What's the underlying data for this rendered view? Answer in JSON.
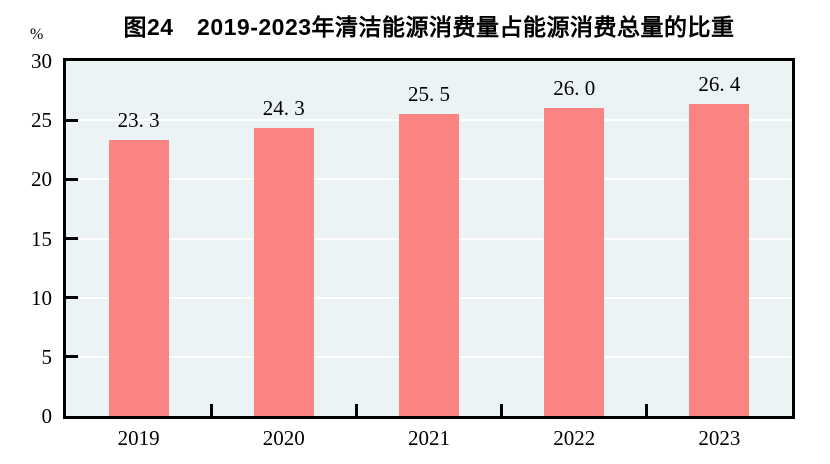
{
  "chart_data": {
    "type": "bar",
    "title": "图24　2019-2023年清洁能源消费量占能源消费总量的比重",
    "unit": "%",
    "categories": [
      "2019",
      "2020",
      "2021",
      "2022",
      "2023"
    ],
    "values": [
      23.3,
      24.3,
      25.5,
      26.0,
      26.4
    ],
    "value_labels": [
      "23. 3",
      "24. 3",
      "25. 5",
      "26. 0",
      "26. 4"
    ],
    "xlabel": "",
    "ylabel": "%",
    "ylim": [
      0,
      30
    ],
    "yticks": [
      0,
      5,
      10,
      15,
      20,
      25,
      30
    ],
    "grid": "horizontal",
    "legend": "none",
    "colors": {
      "bar_fill": "#FA8481",
      "plot_background": "#EBF3F5",
      "gridline": "#FFFFFF",
      "axis": "#000000",
      "text": "#000000",
      "page_background": "#FFFFFF"
    }
  }
}
